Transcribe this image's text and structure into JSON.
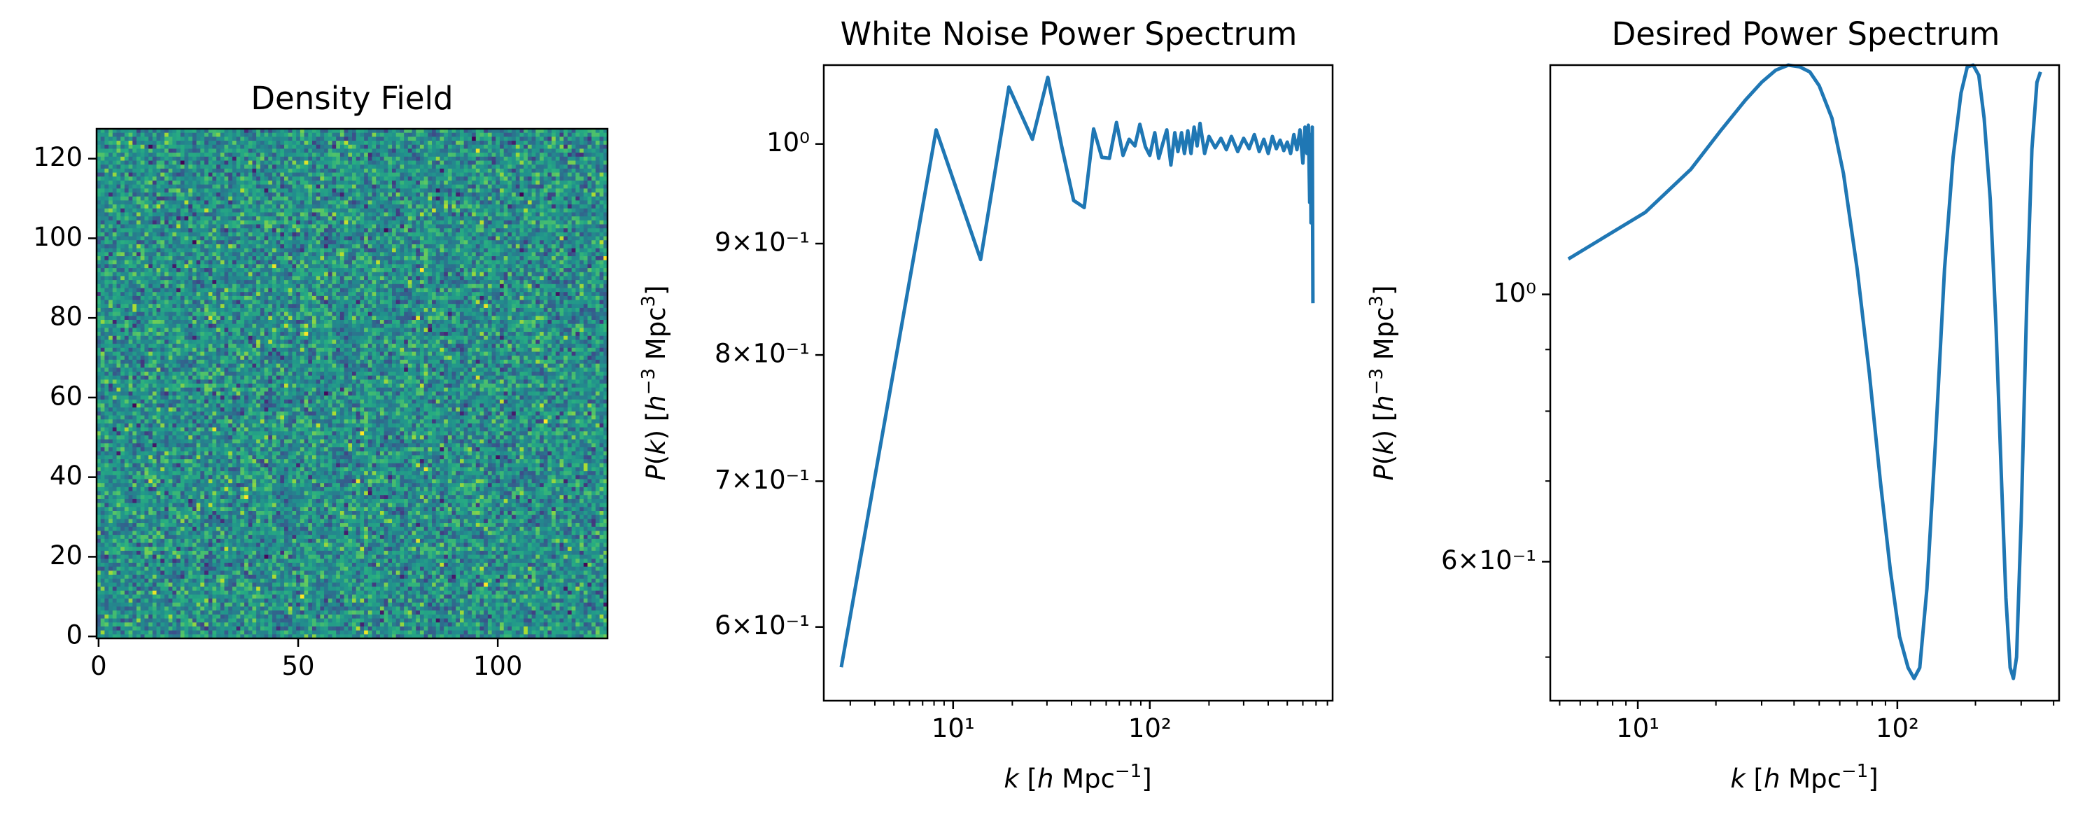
{
  "chart_data": [
    {
      "type": "heatmap",
      "title": "Density Field",
      "xlabel": "",
      "ylabel": "",
      "xlim": [
        -0.5,
        127.5
      ],
      "ylim": [
        -0.5,
        127.5
      ],
      "grid_size": [
        128,
        128
      ],
      "colormap": "viridis",
      "value_range": [
        -3.5,
        3.5
      ],
      "xticks": [
        0,
        50,
        100
      ],
      "xtick_labels": [
        "0",
        "50",
        "100"
      ],
      "yticks": [
        0,
        20,
        40,
        60,
        80,
        100,
        120
      ],
      "ytick_labels": [
        "0",
        "20",
        "40",
        "60",
        "80",
        "100",
        "120"
      ]
    },
    {
      "type": "line",
      "title": "White Noise Power Spectrum",
      "xlabel": "k [h Mpc⁻¹]",
      "ylabel": "P(k) [h⁻³ Mpc³]",
      "xscale": "log",
      "yscale": "log",
      "xlim": [
        2.2,
        850
      ],
      "ylim": [
        0.555,
        1.087
      ],
      "xticks": [
        10,
        100
      ],
      "xtick_labels": [
        "10¹",
        "10²"
      ],
      "yticks": [
        0.6,
        0.7,
        0.8,
        0.9,
        1.0
      ],
      "ytick_labels": [
        "6×10⁻¹",
        "7×10⁻¹",
        "8×10⁻¹",
        "9×10⁻¹",
        "10⁰"
      ],
      "color": "#1f77b4",
      "series": [
        {
          "x": [
            2.7,
            8.2,
            13.8,
            19.2,
            25.3,
            30.3,
            35.6,
            41.0,
            46.4,
            51.8,
            57.0,
            62.3,
            67.7,
            73.1,
            78.5,
            84.0,
            89.0,
            95.0,
            100,
            106,
            111,
            117,
            122,
            128,
            134,
            139,
            145,
            150,
            156,
            162,
            168,
            174,
            180,
            190,
            200,
            215,
            230,
            245,
            260,
            280,
            300,
            320,
            340,
            360,
            380,
            400,
            420,
            440,
            460,
            480,
            500,
            520,
            540,
            560,
            580,
            600,
            615,
            630,
            640,
            650,
            655,
            660,
            665,
            670,
            675
          ],
          "y": [
            0.575,
            1.015,
            0.885,
            1.062,
            1.005,
            1.073,
            0.998,
            0.942,
            0.935,
            1.016,
            0.986,
            0.985,
            1.023,
            0.988,
            1.005,
            0.998,
            1.021,
            0.997,
            0.988,
            1.012,
            0.985,
            1.002,
            1.015,
            0.978,
            1.012,
            0.992,
            1.012,
            0.99,
            1.014,
            0.99,
            1.018,
            0.998,
            1.022,
            0.99,
            1.008,
            0.996,
            1.006,
            0.994,
            1.008,
            0.992,
            1.006,
            0.995,
            1.01,
            0.992,
            1.005,
            0.99,
            1.008,
            0.995,
            1.004,
            0.993,
            1.002,
            0.99,
            1.01,
            0.994,
            1.015,
            0.98,
            1.018,
            0.99,
            1.02,
            0.94,
            1.01,
            0.92,
            0.98,
            1.018,
            0.845
          ]
        }
      ]
    },
    {
      "type": "line",
      "title": "Desired Power Spectrum",
      "xlabel": "k [h Mpc⁻¹]",
      "ylabel": "P(k) [h⁻³ Mpc³]",
      "xscale": "log",
      "yscale": "log",
      "xlim": [
        4.6,
        420
      ],
      "ylim": [
        0.46,
        1.55
      ],
      "xticks": [
        10,
        100
      ],
      "xtick_labels": [
        "10¹",
        "10²"
      ],
      "yticks": [
        0.6,
        1.0
      ],
      "ytick_labels": [
        "6×10⁻¹",
        "10⁰"
      ],
      "color": "#1f77b4",
      "series": [
        {
          "x": [
            5.4,
            10.7,
            16,
            21,
            26,
            30,
            34,
            38,
            42,
            46,
            50,
            56,
            62,
            70,
            78,
            86,
            94,
            102,
            110,
            116,
            122,
            130,
            140,
            152,
            164,
            176,
            186,
            196,
            206,
            216,
            228,
            240,
            252,
            262,
            272,
            280,
            288,
            300,
            315,
            330,
            345,
            356
          ],
          "y": [
            1.07,
            1.17,
            1.27,
            1.37,
            1.45,
            1.5,
            1.535,
            1.55,
            1.545,
            1.53,
            1.49,
            1.4,
            1.26,
            1.05,
            0.86,
            0.7,
            0.59,
            0.52,
            0.49,
            0.48,
            0.49,
            0.57,
            0.75,
            1.05,
            1.3,
            1.47,
            1.545,
            1.55,
            1.52,
            1.4,
            1.2,
            0.94,
            0.7,
            0.56,
            0.49,
            0.48,
            0.5,
            0.65,
            0.98,
            1.32,
            1.5,
            1.53
          ]
        }
      ]
    }
  ]
}
